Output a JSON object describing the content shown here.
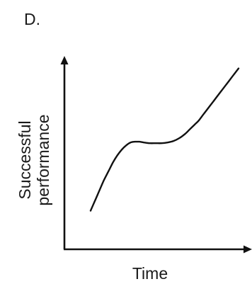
{
  "figure": {
    "label": "D."
  },
  "chart_data": {
    "type": "line",
    "title": "",
    "xlabel": "Time",
    "ylabel_lines": [
      "Successful",
      "performance"
    ],
    "shape": "s-curve with plateau",
    "x": [
      0,
      0.03,
      0.06,
      0.09,
      0.12,
      0.15,
      0.18,
      0.21,
      0.24,
      0.27,
      0.3,
      0.33,
      0.36,
      0.4,
      0.44,
      0.48,
      0.52,
      0.56,
      0.6,
      0.64,
      0.67,
      0.7,
      0.73,
      0.76,
      0.79,
      0.82,
      0.85,
      0.88,
      0.91,
      0.94,
      0.97,
      1.0
    ],
    "y": [
      0.1,
      0.17,
      0.24,
      0.31,
      0.37,
      0.43,
      0.48,
      0.52,
      0.55,
      0.57,
      0.575,
      0.575,
      0.57,
      0.565,
      0.565,
      0.565,
      0.57,
      0.58,
      0.6,
      0.63,
      0.66,
      0.69,
      0.72,
      0.76,
      0.8,
      0.84,
      0.88,
      0.92,
      0.96,
      1.0,
      1.04,
      1.08
    ],
    "xlim": [
      0,
      1
    ],
    "ylim": [
      0,
      1.2
    ],
    "ticks": false,
    "grid": false,
    "legend": false
  }
}
